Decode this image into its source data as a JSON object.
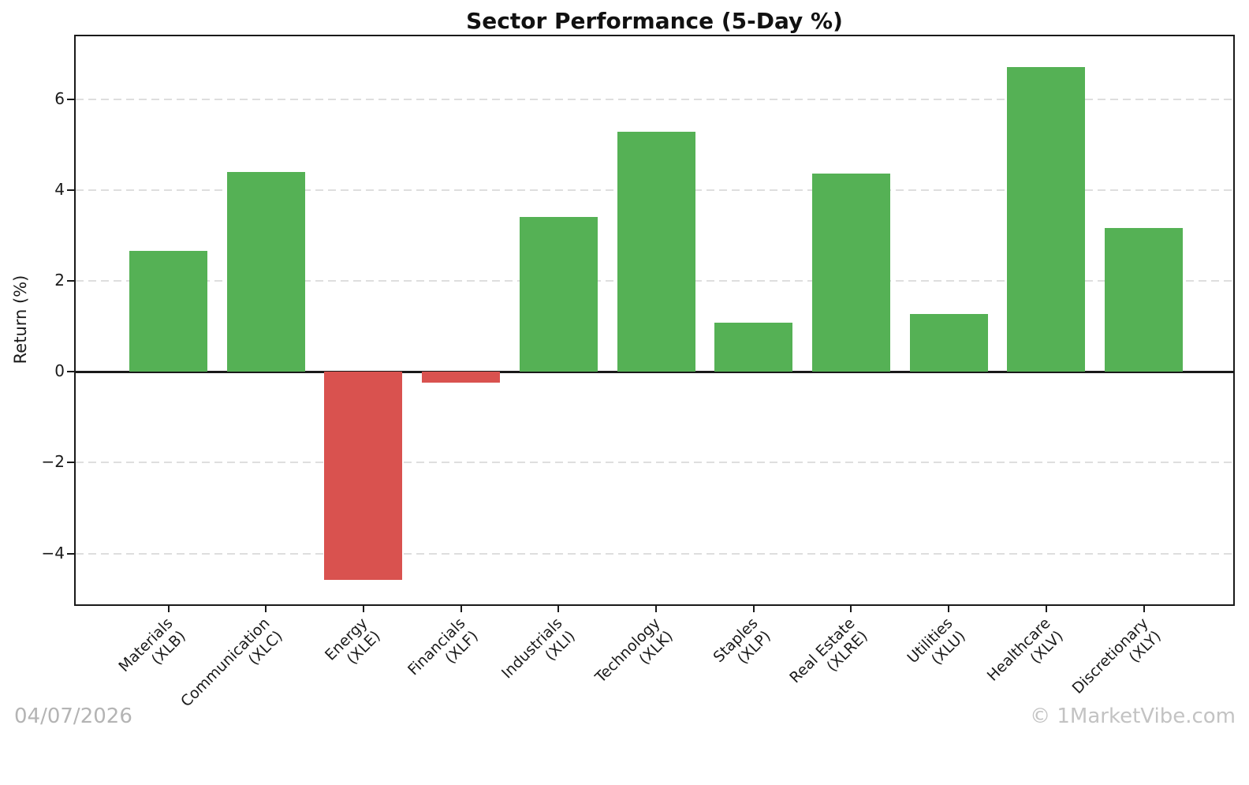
{
  "title": "Sector Performance (5-Day %)",
  "footer": {
    "date": "04/07/2026",
    "watermark": "© 1MarketVibe.com"
  },
  "chart_data": {
    "type": "bar",
    "title": "Sector Performance (5-Day %)",
    "xlabel": "",
    "ylabel": "Return (%)",
    "categories": [
      {
        "label": "Materials",
        "ticker": "(XLB)"
      },
      {
        "label": "Communication",
        "ticker": "(XLC)"
      },
      {
        "label": "Energy",
        "ticker": "(XLE)"
      },
      {
        "label": "Financials",
        "ticker": "(XLF)"
      },
      {
        "label": "Industrials",
        "ticker": "(XLI)"
      },
      {
        "label": "Technology",
        "ticker": "(XLK)"
      },
      {
        "label": "Staples",
        "ticker": "(XLP)"
      },
      {
        "label": "Real Estate",
        "ticker": "(XLRE)"
      },
      {
        "label": "Utilities",
        "ticker": "(XLU)"
      },
      {
        "label": "Healthcare",
        "ticker": "(XLV)"
      },
      {
        "label": "Discretionary",
        "ticker": "(XLY)"
      }
    ],
    "values": [
      2.66,
      4.4,
      -4.59,
      -0.24,
      3.41,
      5.29,
      1.08,
      4.36,
      1.27,
      6.71,
      3.17
    ],
    "yticks": [
      6,
      4,
      2,
      0,
      -2,
      -4
    ],
    "ylim": [
      -5.12,
      7.39
    ],
    "grid": true,
    "legend": null,
    "colors": {
      "positive": "#55b155",
      "negative": "#d9524f",
      "grid": "#dedede",
      "axis": "#1a1a1a",
      "muted_text": "#b4b4b4"
    }
  }
}
